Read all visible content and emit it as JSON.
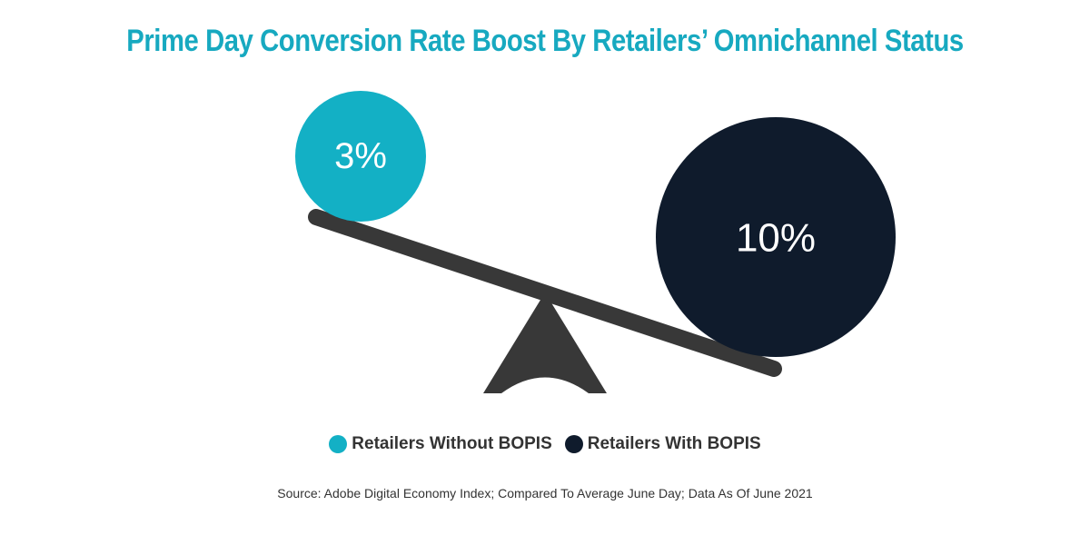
{
  "title": "Prime Day Conversion Rate Boost By Retailers’ Omnichannel Status",
  "source": "Source: Adobe Digital Economy Index; Compared To Average June Day; Data As Of June 2021",
  "colors": {
    "title": "#17a9c0",
    "without": "#13b0c5",
    "with": "#0f1b2c",
    "seesaw": "#383838"
  },
  "chart_data": {
    "type": "bubble",
    "title": "Prime Day Conversion Rate Boost By Retailers’ Omnichannel Status",
    "series": [
      {
        "name": "Retailers Without BOPIS",
        "value": 3,
        "label": "3%",
        "color": "#13b0c5"
      },
      {
        "name": "Retailers With BOPIS",
        "value": 10,
        "label": "10%",
        "color": "#0f1b2c"
      }
    ],
    "legend": "bottom-center"
  }
}
